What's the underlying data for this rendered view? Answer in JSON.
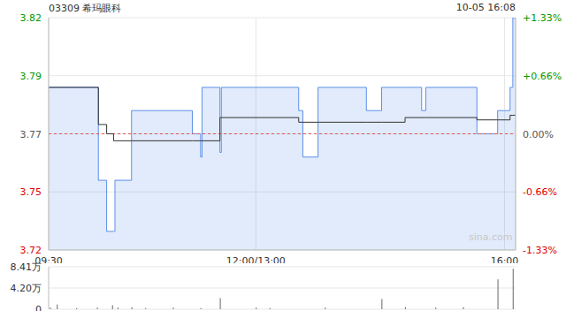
{
  "chart_data": [
    {
      "type": "line",
      "title": "03309 希玛眼科",
      "subtitle": "10-05 16:08",
      "watermark": "sina.com",
      "x": [
        0,
        36,
        42,
        47,
        48,
        60,
        104,
        110,
        111,
        124,
        125,
        181,
        184,
        195,
        230,
        241,
        258,
        270,
        273,
        310,
        325,
        334,
        336,
        338
      ],
      "series": [
        {
          "type": "area",
          "color": "#5b8fe8",
          "values": [
            3.79,
            3.75,
            3.728,
            3.728,
            3.75,
            3.78,
            3.77,
            3.76,
            3.79,
            3.762,
            3.79,
            3.78,
            3.76,
            3.79,
            3.78,
            3.79,
            3.79,
            3.78,
            3.79,
            3.77,
            3.78,
            3.79,
            3.82,
            3.82
          ]
        },
        {
          "type": "line",
          "color": "#333333",
          "values": [
            3.79,
            3.774,
            3.77,
            3.767,
            3.767,
            3.767,
            3.767,
            3.767,
            3.767,
            3.777,
            3.777,
            3.775,
            3.775,
            3.775,
            3.775,
            3.775,
            3.777,
            3.777,
            3.777,
            3.776,
            3.776,
            3.778,
            3.778,
            3.778
          ]
        }
      ],
      "xlim": [
        0,
        338
      ],
      "xticks": [
        {
          "value": 0,
          "label": "09:30"
        },
        {
          "value": 150,
          "label": "12:00/13:00"
        },
        {
          "value": 330,
          "label": "16:00"
        }
      ],
      "ylim": [
        3.72,
        3.82
      ],
      "yticks": [
        3.72,
        {
          "value": 3.745,
          "label": "3.75"
        },
        3.77,
        {
          "value": 3.795,
          "label": "3.79"
        },
        3.82
      ],
      "y2lim": [
        -1.33,
        1.33
      ],
      "y2ticks": [
        {
          "value": -1.33,
          "label": "-1.33%"
        },
        {
          "value": -0.66,
          "label": "-0.66%"
        },
        {
          "value": 0,
          "label": "0.00%"
        },
        {
          "value": 0.66,
          "label": "+0.66%"
        },
        {
          "value": 1.33,
          "label": "+1.33%"
        }
      ],
      "baseline": 3.77,
      "grid": true
    },
    {
      "type": "bar",
      "x": [
        1,
        6,
        20,
        35,
        46,
        50,
        60,
        70,
        90,
        110,
        124,
        150,
        160,
        200,
        241,
        258,
        280,
        300,
        325,
        336
      ],
      "values": [
        0.3,
        0.9,
        0.2,
        0.3,
        0.8,
        0.3,
        0.4,
        0.2,
        0.3,
        0.2,
        2.2,
        0.3,
        0.2,
        0.3,
        2.0,
        0.4,
        0.3,
        0.4,
        5.9,
        8.0
      ],
      "color": "#666666",
      "xlim": [
        0,
        338
      ],
      "ylim": [
        0,
        8.41
      ],
      "yticks": [
        0,
        {
          "value": 4.2,
          "label": "4.20万"
        },
        {
          "value": 8.41,
          "label": "8.41万"
        }
      ],
      "grid": true
    }
  ]
}
